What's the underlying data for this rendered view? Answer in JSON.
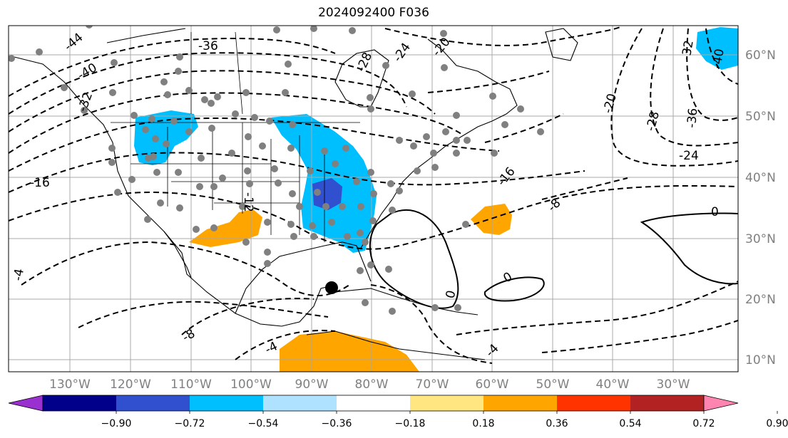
{
  "title": "2024092400 F036",
  "map": {
    "lon_labels": [
      "130°W",
      "120°W",
      "110°W",
      "100°W",
      "90°W",
      "80°W",
      "70°W",
      "60°W",
      "50°W",
      "40°W",
      "30°W"
    ],
    "lat_labels": [
      "60°N",
      "50°N",
      "40°N",
      "30°N",
      "20°N",
      "10°N"
    ],
    "contour_labels": [
      "-44",
      "-40",
      "-36",
      "-32",
      "-28",
      "-24",
      "-20",
      "-20",
      "-28",
      "-32",
      "-36",
      "-40",
      "-24",
      "-16",
      "-16",
      "-12",
      "-8",
      "-8",
      "-4",
      "-4",
      "-4",
      "0",
      "0",
      "0"
    ],
    "marker": "storm-center-dot"
  },
  "colorbar": {
    "tick_labels": [
      "−0.90",
      "−0.72",
      "−0.54",
      "−0.36",
      "−0.18",
      "0.18",
      "0.36",
      "0.54",
      "0.72",
      "0.90"
    ],
    "colors": [
      "#9b30d0",
      "#00008b",
      "#3050d0",
      "#00bfff",
      "#aee2ff",
      "#ffffff",
      "#ffe680",
      "#ffa500",
      "#ff3300",
      "#b22222",
      "#ff85b0"
    ]
  }
}
